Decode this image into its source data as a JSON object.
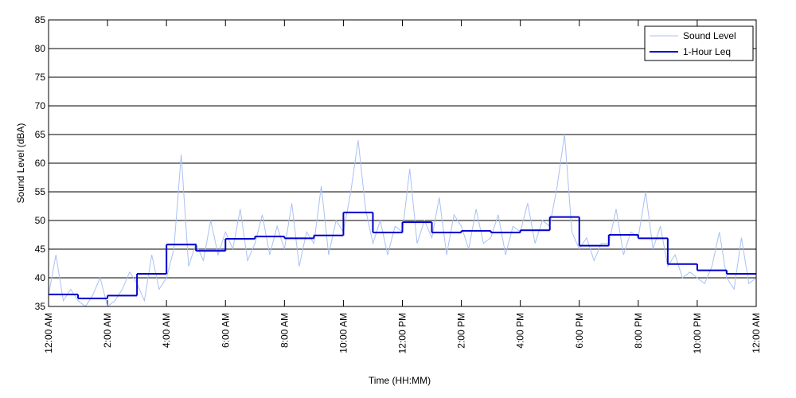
{
  "chart_data": {
    "type": "line",
    "xlabel": "Time (HH:MM)",
    "ylabel": "Sound Level (dBA)",
    "xlim": [
      0,
      24
    ],
    "ylim": [
      35,
      85
    ],
    "xticks": [
      {
        "value": 0,
        "label": "12:00 AM"
      },
      {
        "value": 2,
        "label": "2:00 AM"
      },
      {
        "value": 4,
        "label": "4:00 AM"
      },
      {
        "value": 6,
        "label": "6:00 AM"
      },
      {
        "value": 8,
        "label": "8:00 AM"
      },
      {
        "value": 10,
        "label": "10:00 AM"
      },
      {
        "value": 12,
        "label": "12:00 PM"
      },
      {
        "value": 14,
        "label": "2:00 PM"
      },
      {
        "value": 16,
        "label": "4:00 PM"
      },
      {
        "value": 18,
        "label": "6:00 PM"
      },
      {
        "value": 20,
        "label": "8:00 PM"
      },
      {
        "value": 22,
        "label": "10:00 PM"
      },
      {
        "value": 24,
        "label": "12:00 AM"
      }
    ],
    "yticks": [
      35,
      40,
      45,
      50,
      55,
      60,
      65,
      70,
      75,
      80,
      85
    ],
    "grid": true,
    "legend": "upper right",
    "series": [
      {
        "name": "Sound Level",
        "color": "#a9c1f2",
        "style": "line",
        "x": [
          0,
          0.25,
          0.5,
          0.75,
          1,
          1.25,
          1.5,
          1.75,
          2,
          2.25,
          2.5,
          2.75,
          3,
          3.25,
          3.5,
          3.75,
          4,
          4.25,
          4.5,
          4.75,
          5,
          5.25,
          5.5,
          5.75,
          6,
          6.25,
          6.5,
          6.75,
          7,
          7.25,
          7.5,
          7.75,
          8,
          8.25,
          8.5,
          8.75,
          9,
          9.25,
          9.5,
          9.75,
          10,
          10.25,
          10.5,
          10.75,
          11,
          11.25,
          11.5,
          11.75,
          12,
          12.25,
          12.5,
          12.75,
          13,
          13.25,
          13.5,
          13.75,
          14,
          14.25,
          14.5,
          14.75,
          15,
          15.25,
          15.5,
          15.75,
          16,
          16.25,
          16.5,
          16.75,
          17,
          17.25,
          17.5,
          17.75,
          18,
          18.25,
          18.5,
          18.75,
          19,
          19.25,
          19.5,
          19.75,
          20,
          20.25,
          20.5,
          20.75,
          21,
          21.25,
          21.5,
          21.75,
          22,
          22.25,
          22.5,
          22.75,
          23,
          23.25,
          23.5,
          23.75,
          24
        ],
        "values": [
          37,
          44,
          36,
          38,
          36,
          35,
          37,
          40,
          35,
          36,
          38,
          41,
          39,
          36,
          44,
          38,
          40,
          45,
          61.5,
          42,
          46,
          43,
          50,
          44,
          48,
          45,
          52,
          43,
          46,
          51,
          44,
          49,
          45,
          53,
          42,
          48,
          46,
          56,
          44,
          50,
          48,
          55,
          64,
          52,
          46,
          50,
          44,
          49,
          48,
          59,
          46,
          50,
          47,
          54,
          44,
          51,
          49,
          45,
          52,
          46,
          47,
          51,
          44,
          49,
          48,
          53,
          46,
          50,
          49,
          56,
          65,
          48,
          45,
          47,
          43,
          46,
          46,
          52,
          44,
          48,
          47,
          55,
          45,
          49,
          42,
          44,
          40,
          41,
          40,
          39,
          42,
          48,
          40,
          38,
          47,
          39,
          40
        ]
      },
      {
        "name": "1-Hour Leq",
        "color": "#0000cc",
        "style": "step",
        "x": [
          0,
          1,
          2,
          3,
          4,
          5,
          6,
          7,
          8,
          9,
          10,
          11,
          12,
          13,
          14,
          15,
          16,
          17,
          18,
          19,
          20,
          21,
          22,
          23
        ],
        "values": [
          37.1,
          36.4,
          36.9,
          40.7,
          45.8,
          44.7,
          46.8,
          47.2,
          46.9,
          47.4,
          51.4,
          47.9,
          49.7,
          47.9,
          48.2,
          47.9,
          48.3,
          50.6,
          45.6,
          47.5,
          46.9,
          42.4,
          41.3,
          40.7
        ]
      }
    ]
  }
}
